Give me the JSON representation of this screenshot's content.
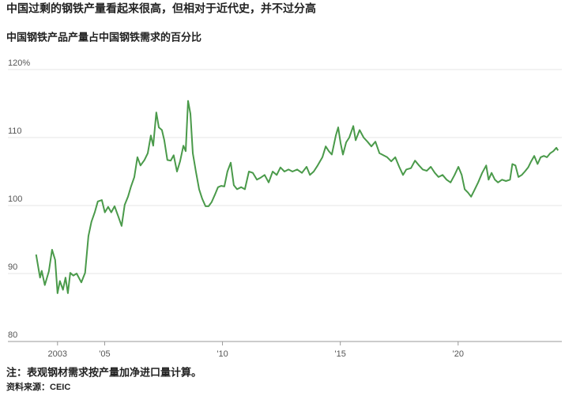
{
  "chart_data": {
    "type": "line",
    "title": "中国过剩的钢铁产量看起来很高，但相对于近代史，并不过分高",
    "subtitle": "中国钢铁产品产量占中国钢铁需求的百分比",
    "note": "注：表观钢材需求按产量加净进口量计算。",
    "source": "资料来源：CEIC",
    "x": [
      2002.09,
      2002.19,
      2002.26,
      2002.33,
      2002.46,
      2002.63,
      2002.77,
      2002.9,
      2003.0,
      2003.1,
      2003.23,
      2003.34,
      2003.44,
      2003.54,
      2003.67,
      2003.81,
      2004.01,
      2004.17,
      2004.31,
      2004.44,
      2004.58,
      2004.71,
      2004.88,
      2005.01,
      2005.15,
      2005.28,
      2005.42,
      2005.58,
      2005.72,
      2005.85,
      2005.99,
      2006.12,
      2006.26,
      2006.39,
      2006.52,
      2006.69,
      2006.83,
      2006.96,
      2007.06,
      2007.19,
      2007.3,
      2007.43,
      2007.53,
      2007.66,
      2007.8,
      2007.93,
      2008.07,
      2008.2,
      2008.34,
      2008.44,
      2008.54,
      2008.64,
      2008.74,
      2008.87,
      2009.01,
      2009.14,
      2009.28,
      2009.41,
      2009.54,
      2009.68,
      2009.81,
      2009.95,
      2010.08,
      2010.21,
      2010.35,
      2010.48,
      2010.62,
      2010.79,
      2010.95,
      2011.12,
      2011.29,
      2011.46,
      2011.62,
      2011.79,
      2011.96,
      2012.13,
      2012.3,
      2012.46,
      2012.63,
      2012.8,
      2012.97,
      2013.17,
      2013.37,
      2013.57,
      2013.71,
      2013.87,
      2014.04,
      2014.24,
      2014.38,
      2014.51,
      2014.64,
      2014.81,
      2014.91,
      2015.01,
      2015.11,
      2015.25,
      2015.38,
      2015.55,
      2015.65,
      2015.82,
      2015.99,
      2016.15,
      2016.32,
      2016.49,
      2016.66,
      2016.83,
      2016.99,
      2017.16,
      2017.33,
      2017.5,
      2017.66,
      2017.8,
      2018.0,
      2018.17,
      2018.34,
      2018.5,
      2018.67,
      2018.84,
      2019.01,
      2019.17,
      2019.34,
      2019.51,
      2019.68,
      2019.85,
      2020.01,
      2020.15,
      2020.28,
      2020.42,
      2020.55,
      2020.68,
      2020.85,
      2021.02,
      2021.19,
      2021.29,
      2021.42,
      2021.56,
      2021.69,
      2021.86,
      2022.03,
      2022.2,
      2022.3,
      2022.43,
      2022.56,
      2022.7,
      2022.83,
      2022.97,
      2023.1,
      2023.23,
      2023.37,
      2023.5,
      2023.64,
      2023.77,
      2023.91,
      2024.04,
      2024.17,
      2024.24
    ],
    "series": [
      {
        "color": "#4a9a4a",
        "values": [
          92.8,
          90.8,
          89.4,
          90.4,
          88.3,
          90.3,
          93.5,
          92.0,
          87.1,
          88.9,
          87.6,
          89.4,
          87.1,
          90.1,
          89.7,
          90.0,
          88.7,
          90.1,
          95.5,
          97.6,
          99.0,
          100.6,
          100.8,
          99.0,
          99.8,
          99.0,
          99.9,
          98.4,
          97.0,
          100.1,
          101.3,
          102.8,
          104.2,
          107.1,
          105.9,
          106.7,
          107.7,
          110.3,
          108.8,
          113.7,
          111.5,
          111.1,
          109.6,
          106.7,
          106.6,
          107.4,
          105.0,
          106.5,
          108.8,
          108.0,
          115.4,
          113.5,
          107.7,
          105.0,
          102.4,
          101.0,
          99.9,
          99.9,
          100.5,
          101.6,
          102.7,
          102.9,
          102.8,
          105.0,
          106.3,
          103.0,
          102.4,
          102.7,
          102.4,
          105.0,
          104.8,
          103.8,
          104.1,
          104.5,
          103.4,
          105.0,
          104.5,
          105.6,
          105.0,
          105.3,
          105.0,
          105.3,
          104.8,
          105.7,
          104.5,
          105.0,
          105.9,
          107.1,
          108.7,
          108.0,
          107.5,
          110.3,
          111.5,
          109.2,
          107.5,
          109.3,
          110.0,
          111.7,
          109.6,
          111.1,
          110.0,
          109.4,
          108.7,
          109.4,
          107.7,
          107.4,
          107.1,
          106.5,
          107.1,
          105.7,
          104.5,
          105.3,
          105.5,
          106.6,
          105.9,
          105.3,
          105.1,
          105.7,
          104.8,
          104.2,
          104.5,
          103.8,
          103.4,
          104.5,
          105.7,
          104.5,
          102.4,
          101.9,
          101.3,
          102.2,
          103.4,
          104.8,
          105.9,
          103.8,
          104.8,
          103.8,
          103.4,
          103.8,
          103.6,
          103.8,
          106.1,
          105.9,
          104.2,
          104.5,
          105.0,
          105.6,
          106.5,
          107.3,
          106.1,
          107.1,
          107.3,
          107.1,
          107.7,
          108.0,
          108.5,
          108.1
        ]
      }
    ],
    "xlim": [
      2001.9,
      2024.4
    ],
    "xticks": [
      {
        "value": 2003,
        "label": "2003"
      },
      {
        "value": 2005,
        "label": "'05"
      },
      {
        "value": 2010,
        "label": "'10"
      },
      {
        "value": 2015,
        "label": "'15"
      },
      {
        "value": 2020,
        "label": "'20"
      }
    ],
    "ylim": [
      80,
      120
    ],
    "yticks": [
      80,
      90,
      100,
      110,
      {
        "value": 120,
        "label": "120%"
      }
    ],
    "grid": true
  }
}
